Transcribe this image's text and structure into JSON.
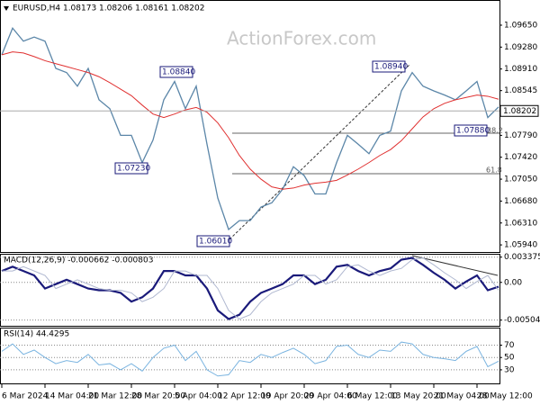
{
  "watermark": "ActionForex.com",
  "chart_data": [
    {
      "type": "line",
      "title": "EURUSD,H4 1.08173 1.08206 1.08161 1.08202",
      "categories": [
        "6 Mar 2024",
        null,
        null,
        null,
        "14 Mar 04:00",
        null,
        null,
        null,
        "21 Mar 12:00",
        null,
        null,
        null,
        "28 Mar 20:00",
        null,
        null,
        null,
        "5 Apr 04:00",
        null,
        null,
        null,
        "12 Apr 12:00",
        null,
        null,
        null,
        "19 Apr 20:00",
        null,
        null,
        null,
        "29 Apr 04:00",
        null,
        null,
        null,
        "6 May 12:00",
        null,
        null,
        null,
        "13 May 20:00",
        null,
        null,
        null,
        "21 May 04:00",
        null,
        null,
        null,
        "28 May 12:00",
        null,
        null
      ],
      "series": [
        {
          "color": "#5b86a8",
          "values": [
            1.0915,
            1.096,
            1.0938,
            1.0945,
            1.0938,
            1.0892,
            1.0885,
            1.0862,
            1.0892,
            1.0839,
            1.0824,
            1.0779,
            1.0779,
            1.0733,
            1.0771,
            1.0839,
            1.087,
            1.0824,
            1.0862,
            1.0764,
            1.0673,
            1.062,
            1.0635,
            1.0635,
            1.0658,
            1.0665,
            1.0688,
            1.0726,
            1.0711,
            1.068,
            1.068,
            1.0733,
            1.0779,
            1.0764,
            1.0748,
            1.0779,
            1.0786,
            1.0854,
            1.0885,
            1.0862,
            1.0854,
            1.0847,
            1.0839,
            1.0854,
            1.087,
            1.0809,
            1.0827
          ]
        },
        {
          "color": "#e03030",
          "values": [
            1.0915,
            1.092,
            1.0918,
            1.0912,
            1.0905,
            1.09,
            1.0895,
            1.089,
            1.0885,
            1.0878,
            1.0868,
            1.0857,
            1.0846,
            1.083,
            1.0815,
            1.0809,
            1.0815,
            1.0822,
            1.0826,
            1.0818,
            1.08,
            1.0775,
            1.0745,
            1.0722,
            1.0705,
            1.0692,
            1.0688,
            1.069,
            1.0695,
            1.0698,
            1.07,
            1.0703,
            1.0712,
            1.0722,
            1.0733,
            1.0745,
            1.0755,
            1.077,
            1.079,
            1.081,
            1.0824,
            1.0833,
            1.0839,
            1.0843,
            1.0847,
            1.0845,
            1.084
          ]
        }
      ],
      "ylim": [
        1.0582,
        1.1006
      ],
      "yticks": [
        {
          "value": 1.0965,
          "label": "1.09650"
        },
        {
          "value": 1.0928,
          "label": "1.09280"
        },
        {
          "value": 1.0891,
          "label": "1.08910"
        },
        1.08545,
        {
          "value": 1.0779,
          "label": "1.07790"
        },
        {
          "value": 1.0742,
          "label": "1.07420"
        },
        {
          "value": 1.0705,
          "label": "1.07050"
        },
        {
          "value": 1.0668,
          "label": "1.06680"
        },
        {
          "value": 1.0631,
          "label": "1.06310"
        },
        {
          "value": 1.0594,
          "label": "1.05940"
        }
      ],
      "last_price": {
        "value": 1.08202,
        "label": "1.08202"
      },
      "annotations": [
        "1.08840",
        "1.07230",
        "1.06010",
        "1.08940",
        "1.07880",
        "38.2",
        "61.8"
      ],
      "grid": false
    },
    {
      "type": "line",
      "title": "MACD(12,26,9) -0.000662 -0.000803",
      "series": [
        {
          "color": "#1a1a7a",
          "values": [
            0.00152,
            0.0021,
            0.00152,
            0.00093,
            -0.00082,
            -0.00023,
            0.00035,
            -0.00023,
            -0.00082,
            -0.00105,
            -0.00105,
            -0.0014,
            -0.00257,
            -0.00199,
            -0.00082,
            0.00152,
            0.00152,
            0.00093,
            0.00093,
            -0.00082,
            -0.00374,
            -0.0049,
            -0.00432,
            -0.00257,
            -0.0014,
            -0.00082,
            -0.00023,
            0.00093,
            0.00093,
            -0.00023,
            0.00035,
            0.0021,
            0.00234,
            0.00152,
            0.00093,
            0.00152,
            0.00187,
            0.00304,
            0.00327,
            0.00234,
            0.00128,
            0.00035,
            -0.00082,
            0.00012,
            0.00093,
            -0.00105,
            -0.00058
          ]
        },
        {
          "color": "#b0b8d0",
          "values": [
            0.00152,
            0.00152,
            0.0021,
            0.00152,
            0.00093,
            -0.00082,
            -0.00023,
            0.00035,
            -0.00023,
            -0.00082,
            -0.00105,
            -0.00105,
            -0.0014,
            -0.00257,
            -0.00199,
            -0.00082,
            0.00152,
            0.00152,
            0.00093,
            0.00093,
            -0.00082,
            -0.00374,
            -0.0049,
            -0.00432,
            -0.00257,
            -0.0014,
            -0.00082,
            -0.00023,
            0.00093,
            0.00093,
            -0.00023,
            0.00035,
            0.0021,
            0.00234,
            0.00152,
            0.00093,
            0.00152,
            0.00187,
            0.00304,
            0.00327,
            0.00234,
            0.00128,
            0.00035,
            -0.00082,
            0.00012,
            0.00093,
            -0.00105
          ]
        }
      ],
      "ylim": [
        -0.0058,
        0.0037
      ],
      "yticks": [
        0.003375,
        {
          "value": 0,
          "label": "0.00"
        },
        -0.00504
      ],
      "grid": true
    },
    {
      "type": "line",
      "title": "RSI(14) 44.4295",
      "series": [
        {
          "color": "#7ab4e0",
          "values": [
            60,
            72,
            55,
            62,
            50,
            40,
            45,
            42,
            55,
            38,
            40,
            30,
            40,
            28,
            50,
            65,
            70,
            45,
            60,
            30,
            20,
            22,
            45,
            42,
            55,
            50,
            58,
            65,
            55,
            40,
            45,
            68,
            70,
            55,
            50,
            62,
            60,
            75,
            72,
            55,
            50,
            48,
            45,
            60,
            68,
            35,
            44
          ]
        }
      ],
      "ylim": [
        8,
        97
      ],
      "yticks": [
        70,
        50,
        30
      ],
      "grid": true
    }
  ]
}
